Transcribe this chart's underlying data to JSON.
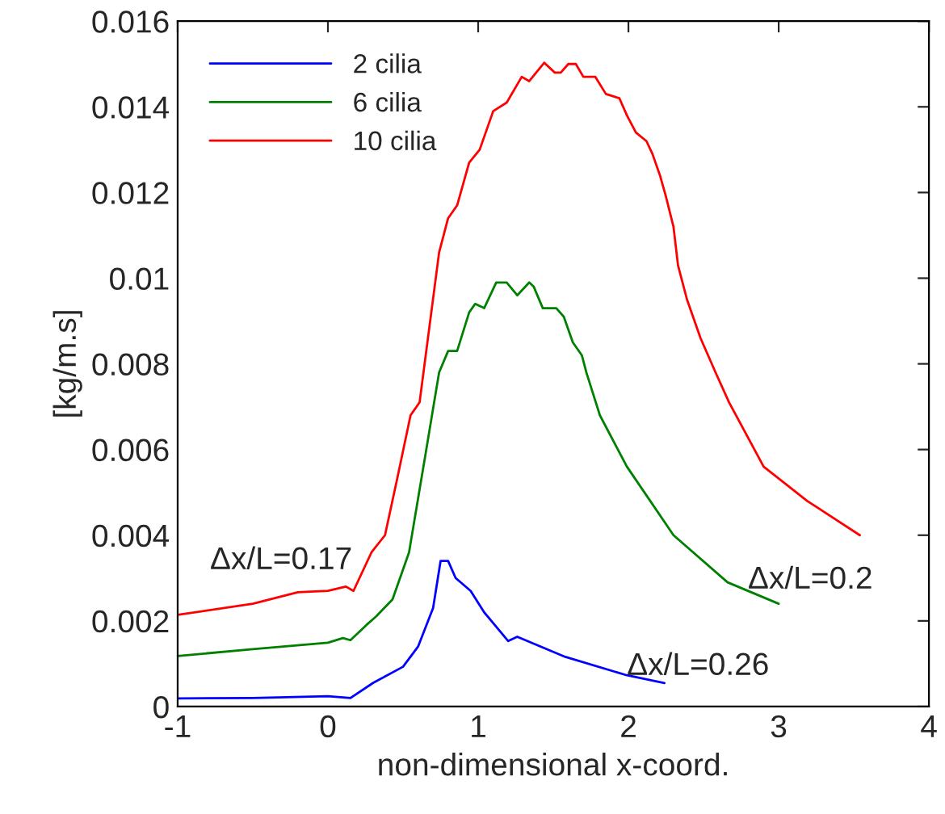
{
  "chart_data": {
    "type": "line",
    "xlabel": "non-dimensional x-coord.",
    "ylabel": "[kg/m.s]",
    "xlim": [
      -1,
      4
    ],
    "xticks": [
      -1,
      0,
      1,
      2,
      3,
      4
    ],
    "ylim": [
      0,
      0.016
    ],
    "yticks": [
      0,
      0.002,
      0.004,
      0.006,
      0.008,
      0.01,
      0.012,
      0.014,
      0.016
    ],
    "grid": false,
    "legend": "top left",
    "marker": "none",
    "line_style": "solid",
    "series": [
      {
        "name": "2 cilia",
        "color": "#0000ff",
        "x": [
          -1,
          -0.5,
          0,
          0.15,
          0.3,
          0.5,
          0.6,
          0.7,
          0.75,
          0.8,
          0.85,
          0.95,
          1.04,
          1.2,
          1.26,
          1.58,
          1.99,
          2.24
        ],
        "values": [
          0.00019,
          0.0002,
          0.00024,
          0.0002,
          0.00055,
          0.00093,
          0.0014,
          0.0023,
          0.0034,
          0.0034,
          0.003,
          0.0027,
          0.0022,
          0.00153,
          0.00163,
          0.00116,
          0.00073,
          0.00055
        ]
      },
      {
        "name": "6 cilia",
        "color": "#008000",
        "x": [
          -1,
          -0.5,
          0,
          0.1,
          0.15,
          0.255,
          0.32,
          0.43,
          0.54,
          0.65,
          0.74,
          0.8,
          0.86,
          0.94,
          0.98,
          1.04,
          1.12,
          1.19,
          1.26,
          1.34,
          1.37,
          1.43,
          1.52,
          1.57,
          1.63,
          1.69,
          1.72,
          1.81,
          1.99,
          2.3,
          2.66,
          3.0
        ],
        "values": [
          0.00118,
          0.00134,
          0.00149,
          0.0016,
          0.00155,
          0.0019,
          0.0021,
          0.0025,
          0.0036,
          0.0059,
          0.0078,
          0.0083,
          0.0083,
          0.0092,
          0.0094,
          0.0093,
          0.0099,
          0.0099,
          0.0096,
          0.0099,
          0.0098,
          0.0093,
          0.0093,
          0.0091,
          0.0085,
          0.0082,
          0.0078,
          0.0068,
          0.0056,
          0.004,
          0.0029,
          0.0024
        ]
      },
      {
        "name": "10 cilia",
        "color": "#ff0000",
        "x": [
          -1,
          -0.5,
          -0.2,
          0,
          0.12,
          0.17,
          0.29,
          0.38,
          0.46,
          0.55,
          0.61,
          0.74,
          0.8,
          0.86,
          0.94,
          1.01,
          1.1,
          1.19,
          1.29,
          1.34,
          1.44,
          1.51,
          1.55,
          1.6,
          1.65,
          1.7,
          1.78,
          1.85,
          1.94,
          1.99,
          2.05,
          2.12,
          2.16,
          2.21,
          2.25,
          2.3,
          2.33,
          2.39,
          2.48,
          2.58,
          2.67,
          2.9,
          3.19,
          3.54
        ],
        "values": [
          0.00214,
          0.0024,
          0.00267,
          0.0027,
          0.0028,
          0.0027,
          0.0036,
          0.004,
          0.0053,
          0.0068,
          0.0071,
          0.0106,
          0.0114,
          0.0117,
          0.0127,
          0.013,
          0.0139,
          0.0141,
          0.0147,
          0.0146,
          0.01503,
          0.0148,
          0.0148,
          0.015,
          0.015,
          0.0147,
          0.0147,
          0.0143,
          0.0142,
          0.0138,
          0.0134,
          0.0132,
          0.0129,
          0.0124,
          0.0119,
          0.0112,
          0.0103,
          0.0095,
          0.0086,
          0.0078,
          0.0071,
          0.0056,
          0.0048,
          0.004
        ]
      }
    ],
    "annotations": [
      "Δx/L=0.17",
      "Δx/L=0.2",
      {
        "text": "Δx/L=0.26",
        "x": 1.99,
        "y": 0.00093
      }
    ]
  }
}
